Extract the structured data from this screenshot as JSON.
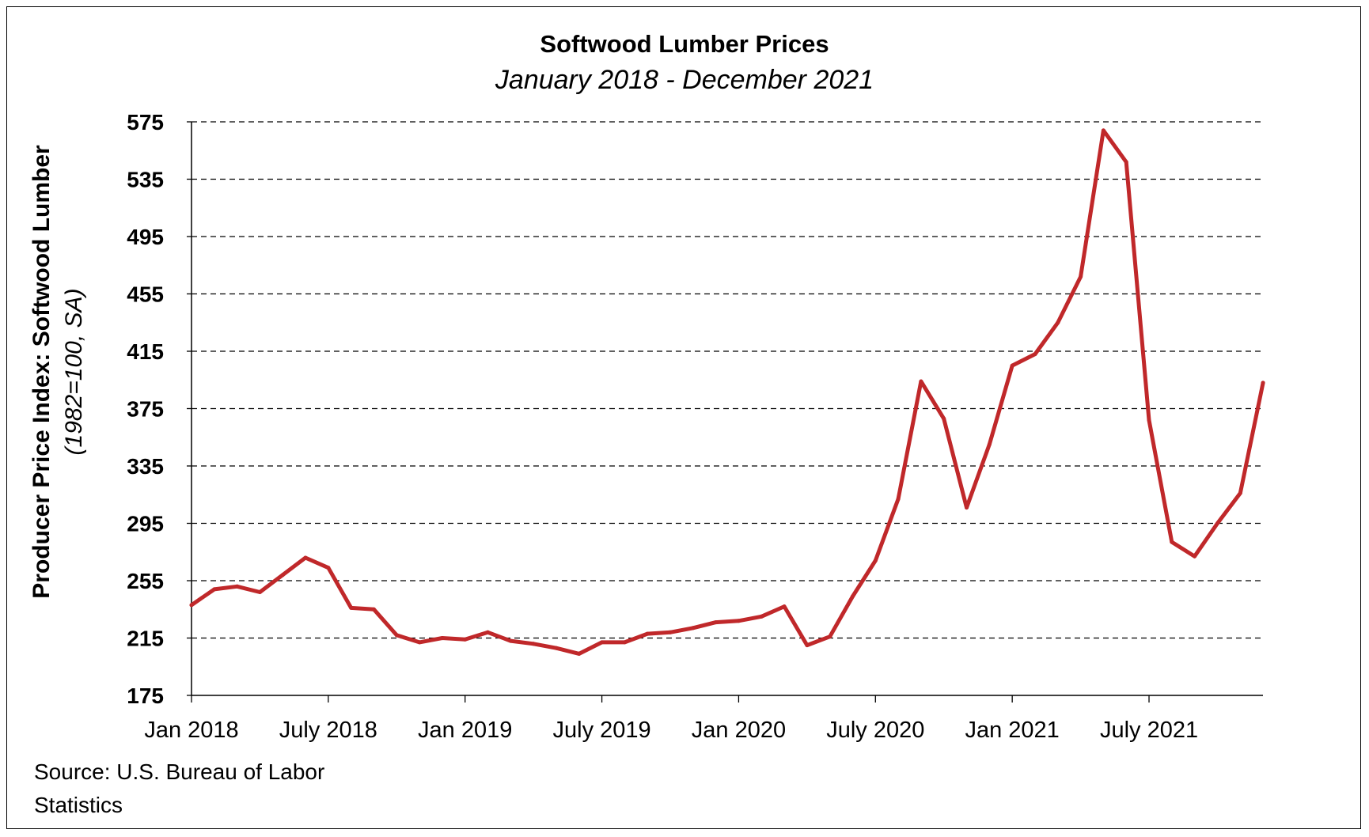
{
  "chart_data": {
    "type": "line",
    "title": "Softwood Lumber Prices",
    "subtitle": "January 2018 - December 2021",
    "ylabel": "Producer Price Index: Softwood Lumber",
    "ylabel_units": "(1982=100, SA)",
    "xlabel": "",
    "ylim": [
      175,
      575
    ],
    "yticks": [
      175,
      215,
      255,
      295,
      335,
      375,
      415,
      455,
      495,
      535,
      575
    ],
    "xtick_labels": [
      "Jan 2018",
      "July 2018",
      "Jan 2019",
      "July 2019",
      "Jan 2020",
      "July 2020",
      "Jan 2021",
      "July 2021"
    ],
    "xtick_month_index": [
      0,
      6,
      12,
      18,
      24,
      30,
      36,
      42
    ],
    "grid": "horizontal dashed",
    "source": "Source: U.S. Bureau of Labor Statistics",
    "series": [
      {
        "color": "#C0282A",
        "x_months": [
          "Jan 2018",
          "Feb 2018",
          "Mar 2018",
          "Apr 2018",
          "May 2018",
          "Jun 2018",
          "Jul 2018",
          "Aug 2018",
          "Sep 2018",
          "Oct 2018",
          "Nov 2018",
          "Dec 2018",
          "Jan 2019",
          "Feb 2019",
          "Mar 2019",
          "Apr 2019",
          "May 2019",
          "Jun 2019",
          "Jul 2019",
          "Aug 2019",
          "Sep 2019",
          "Oct 2019",
          "Nov 2019",
          "Dec 2019",
          "Jan 2020",
          "Feb 2020",
          "Mar 2020",
          "Apr 2020",
          "May 2020",
          "Jun 2020",
          "Jul 2020",
          "Aug 2020",
          "Sep 2020",
          "Oct 2020",
          "Nov 2020",
          "Dec 2020",
          "Jan 2021",
          "Feb 2021",
          "Mar 2021",
          "Apr 2021",
          "May 2021",
          "Jun 2021",
          "Jul 2021",
          "Aug 2021",
          "Sep 2021",
          "Oct 2021",
          "Nov 2021",
          "Dec 2021"
        ],
        "values": [
          238,
          249,
          251,
          247,
          259,
          271,
          264,
          236,
          235,
          217,
          212,
          215,
          214,
          219,
          213,
          211,
          208,
          204,
          212,
          212,
          218,
          219,
          222,
          226,
          227,
          230,
          237,
          210,
          216,
          244,
          269,
          312,
          394,
          368,
          306,
          350,
          405,
          413,
          435,
          467,
          569,
          547,
          367,
          282,
          272,
          295,
          316,
          393
        ]
      }
    ]
  }
}
